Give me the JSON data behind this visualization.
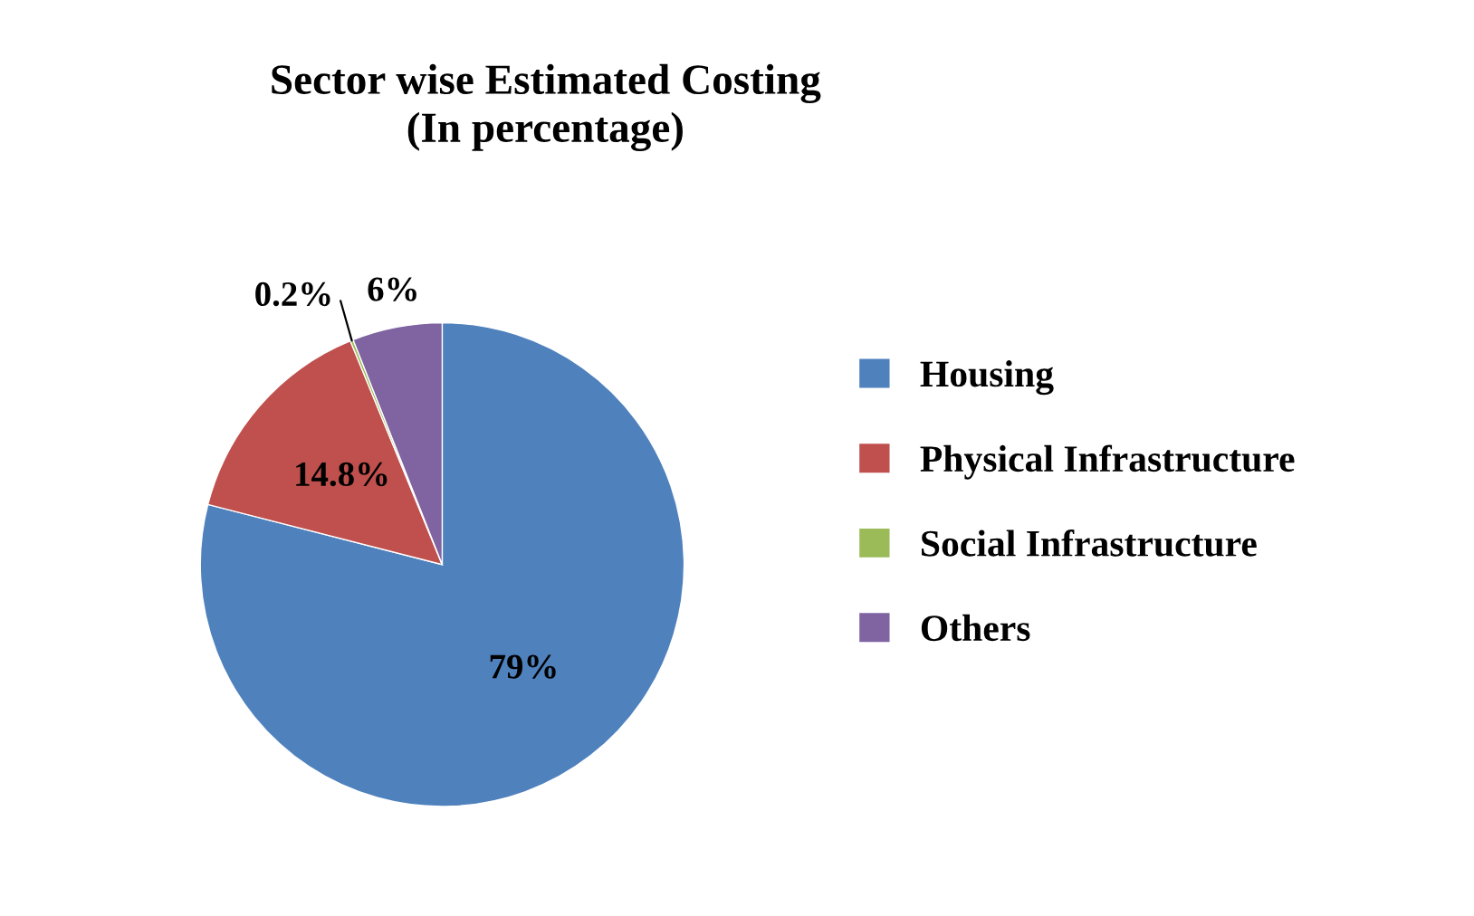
{
  "chart_data": {
    "type": "pie",
    "title": "Sector wise Estimated Costing\n(In percentage)",
    "categories": [
      "Housing",
      "Physical Infrastructure",
      "Social Infrastructure",
      "Others"
    ],
    "values": [
      79,
      14.8,
      0.2,
      6
    ],
    "value_labels": [
      "79%",
      "14.8%",
      "0.2%",
      "6%"
    ],
    "colors": [
      "#4f81bd",
      "#c0504d",
      "#9bbb59",
      "#8064a2"
    ],
    "legend": "right"
  }
}
